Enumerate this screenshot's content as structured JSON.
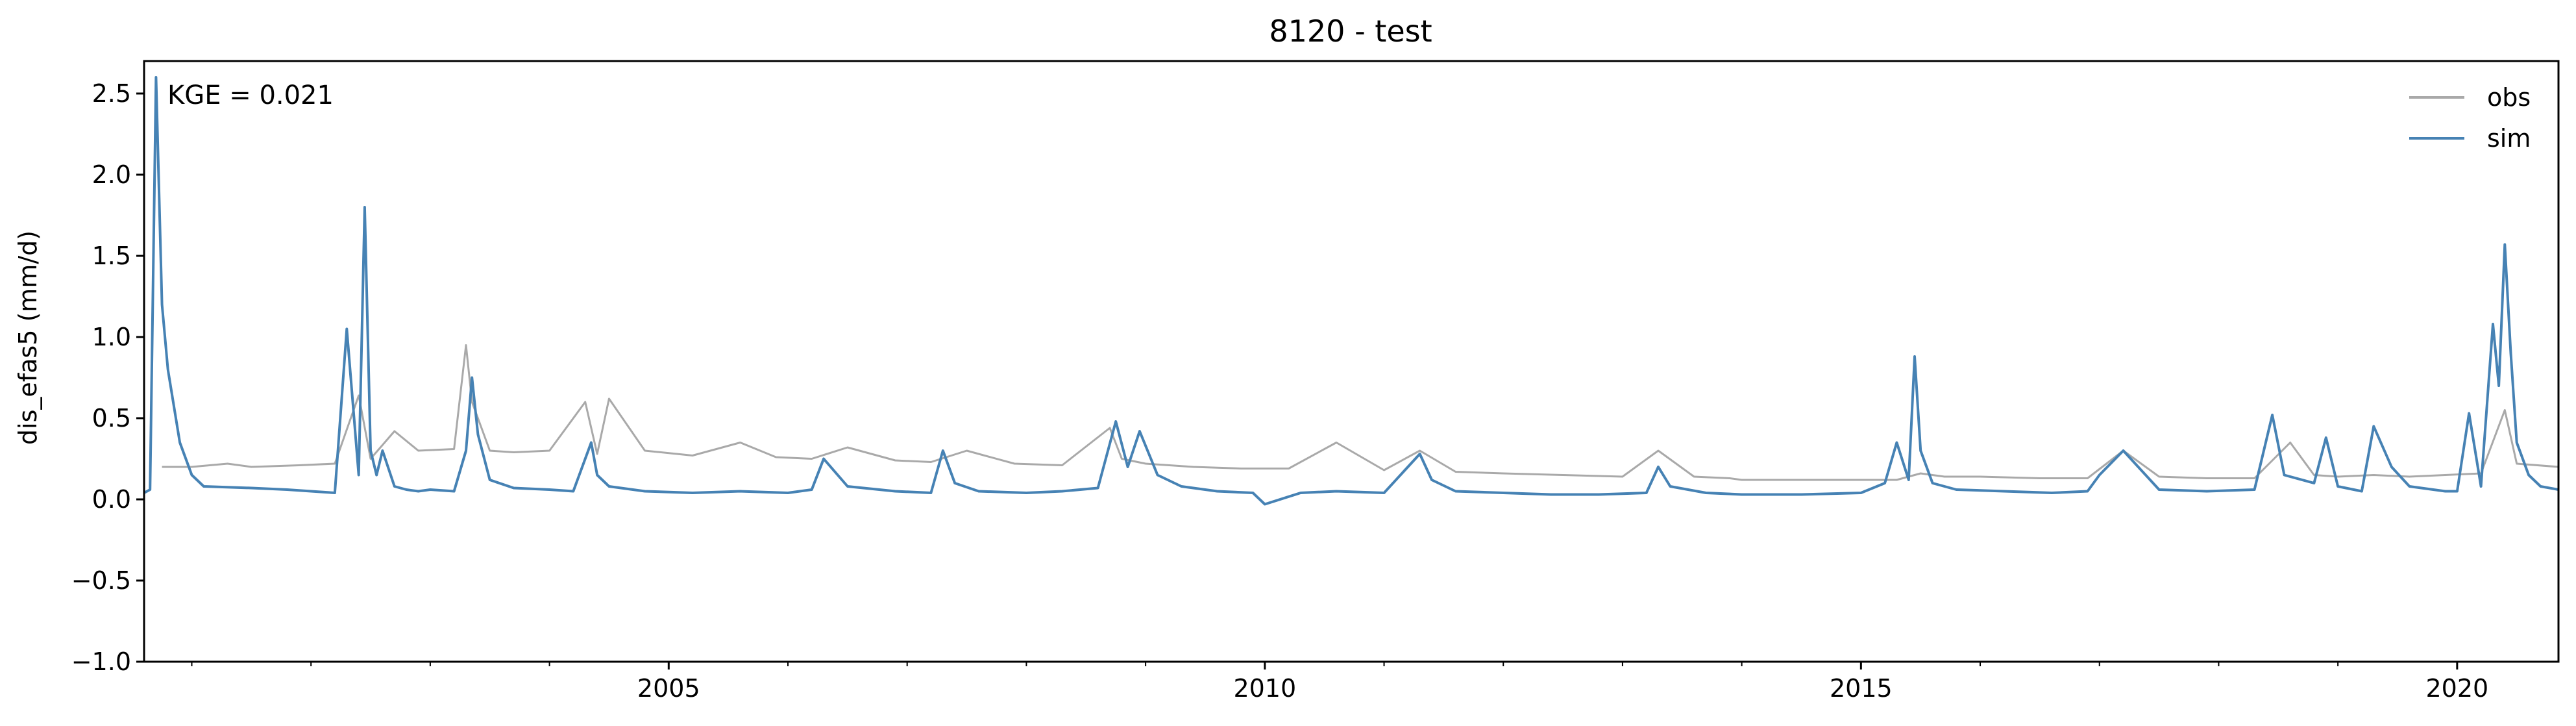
{
  "chart_data": {
    "type": "line",
    "title": "8120 - test",
    "xlabel": "",
    "ylabel": "dis_efas5 (mm/d)",
    "annotation": "KGE = 0.021",
    "xlim": [
      2000.6,
      2020.85
    ],
    "ylim": [
      -1.0,
      2.7
    ],
    "x_ticks": [
      2005,
      2010,
      2015,
      2020
    ],
    "x_tick_labels": [
      "2005",
      "2010",
      "2015",
      "2020"
    ],
    "y_ticks": [
      -1.0,
      -0.5,
      0.0,
      0.5,
      1.0,
      1.5,
      2.0,
      2.5
    ],
    "y_tick_labels": [
      "−1.0",
      "−0.5",
      "0.0",
      "0.5",
      "1.0",
      "1.5",
      "2.0",
      "2.5"
    ],
    "grid": false,
    "legend_position": "top-right",
    "series": [
      {
        "name": "obs",
        "color": "#a9a9a9",
        "x": [
          2000.75,
          2001.0,
          2001.3,
          2001.5,
          2001.9,
          2002.2,
          2002.4,
          2002.5,
          2002.7,
          2002.9,
          2003.2,
          2003.3,
          2003.35,
          2003.5,
          2003.7,
          2004.0,
          2004.3,
          2004.4,
          2004.5,
          2004.8,
          2005.2,
          2005.6,
          2005.9,
          2006.2,
          2006.5,
          2006.9,
          2007.2,
          2007.5,
          2007.9,
          2008.3,
          2008.7,
          2008.8,
          2009.0,
          2009.4,
          2009.8,
          2010.2,
          2010.6,
          2011.0,
          2011.3,
          2011.6,
          2012.0,
          2012.5,
          2013.0,
          2013.3,
          2013.6,
          2013.9,
          2014.0,
          2015.3,
          2015.5,
          2015.7,
          2016.0,
          2016.5,
          2016.9,
          2017.2,
          2017.5,
          2017.9,
          2018.3,
          2018.6,
          2018.8,
          2019.0,
          2019.3,
          2019.6,
          2019.9,
          2020.2,
          2020.4,
          2020.5,
          2020.85
        ],
        "y": [
          0.2,
          0.2,
          0.22,
          0.2,
          0.21,
          0.22,
          0.64,
          0.25,
          0.42,
          0.3,
          0.31,
          0.95,
          0.6,
          0.3,
          0.29,
          0.3,
          0.6,
          0.28,
          0.62,
          0.3,
          0.27,
          0.35,
          0.26,
          0.25,
          0.32,
          0.24,
          0.23,
          0.3,
          0.22,
          0.21,
          0.44,
          0.25,
          0.22,
          0.2,
          0.19,
          0.19,
          0.35,
          0.18,
          0.3,
          0.17,
          0.16,
          0.15,
          0.14,
          0.3,
          0.14,
          0.13,
          0.12,
          0.12,
          0.16,
          0.14,
          0.14,
          0.13,
          0.13,
          0.3,
          0.14,
          0.13,
          0.13,
          0.35,
          0.15,
          0.14,
          0.15,
          0.14,
          0.15,
          0.16,
          0.55,
          0.22,
          0.2
        ]
      },
      {
        "name": "sim",
        "color": "#4682b4",
        "x": [
          2000.6,
          2000.65,
          2000.7,
          2000.75,
          2000.8,
          2000.9,
          2001.0,
          2001.1,
          2001.5,
          2001.8,
          2002.0,
          2002.2,
          2002.3,
          2002.4,
          2002.45,
          2002.5,
          2002.55,
          2002.6,
          2002.7,
          2002.8,
          2002.9,
          2003.0,
          2003.2,
          2003.3,
          2003.35,
          2003.4,
          2003.5,
          2003.7,
          2004.0,
          2004.2,
          2004.35,
          2004.4,
          2004.5,
          2004.8,
          2005.2,
          2005.6,
          2006.0,
          2006.2,
          2006.3,
          2006.5,
          2006.9,
          2007.2,
          2007.3,
          2007.4,
          2007.6,
          2008.0,
          2008.3,
          2008.6,
          2008.75,
          2008.85,
          2008.95,
          2009.1,
          2009.3,
          2009.6,
          2009.9,
          2010.0,
          2010.3,
          2010.6,
          2011.0,
          2011.3,
          2011.4,
          2011.6,
          2012.0,
          2012.4,
          2012.8,
          2013.2,
          2013.3,
          2013.4,
          2013.7,
          2014.0,
          2014.5,
          2015.0,
          2015.2,
          2015.3,
          2015.4,
          2015.45,
          2015.5,
          2015.6,
          2015.8,
          2016.2,
          2016.6,
          2016.9,
          2017.0,
          2017.2,
          2017.5,
          2017.9,
          2018.3,
          2018.45,
          2018.55,
          2018.8,
          2018.9,
          2019.0,
          2019.2,
          2019.3,
          2019.45,
          2019.6,
          2019.9,
          2020.0,
          2020.1,
          2020.2,
          2020.3,
          2020.35,
          2020.4,
          2020.45,
          2020.5,
          2020.6,
          2020.7,
          2020.85
        ],
        "y": [
          0.04,
          0.06,
          2.6,
          1.2,
          0.8,
          0.35,
          0.15,
          0.08,
          0.07,
          0.06,
          0.05,
          0.04,
          1.05,
          0.15,
          1.8,
          0.3,
          0.15,
          0.3,
          0.08,
          0.06,
          0.05,
          0.06,
          0.05,
          0.3,
          0.75,
          0.4,
          0.12,
          0.07,
          0.06,
          0.05,
          0.35,
          0.15,
          0.08,
          0.05,
          0.04,
          0.05,
          0.04,
          0.06,
          0.25,
          0.08,
          0.05,
          0.04,
          0.3,
          0.1,
          0.05,
          0.04,
          0.05,
          0.07,
          0.48,
          0.2,
          0.42,
          0.15,
          0.08,
          0.05,
          0.04,
          -0.03,
          0.04,
          0.05,
          0.04,
          0.28,
          0.12,
          0.05,
          0.04,
          0.03,
          0.03,
          0.04,
          0.2,
          0.08,
          0.04,
          0.03,
          0.03,
          0.04,
          0.1,
          0.35,
          0.12,
          0.88,
          0.3,
          0.1,
          0.06,
          0.05,
          0.04,
          0.05,
          0.15,
          0.3,
          0.06,
          0.05,
          0.06,
          0.52,
          0.15,
          0.1,
          0.38,
          0.08,
          0.05,
          0.45,
          0.2,
          0.08,
          0.05,
          0.05,
          0.53,
          0.08,
          1.08,
          0.7,
          1.57,
          0.9,
          0.35,
          0.15,
          0.08,
          0.06
        ]
      }
    ]
  }
}
